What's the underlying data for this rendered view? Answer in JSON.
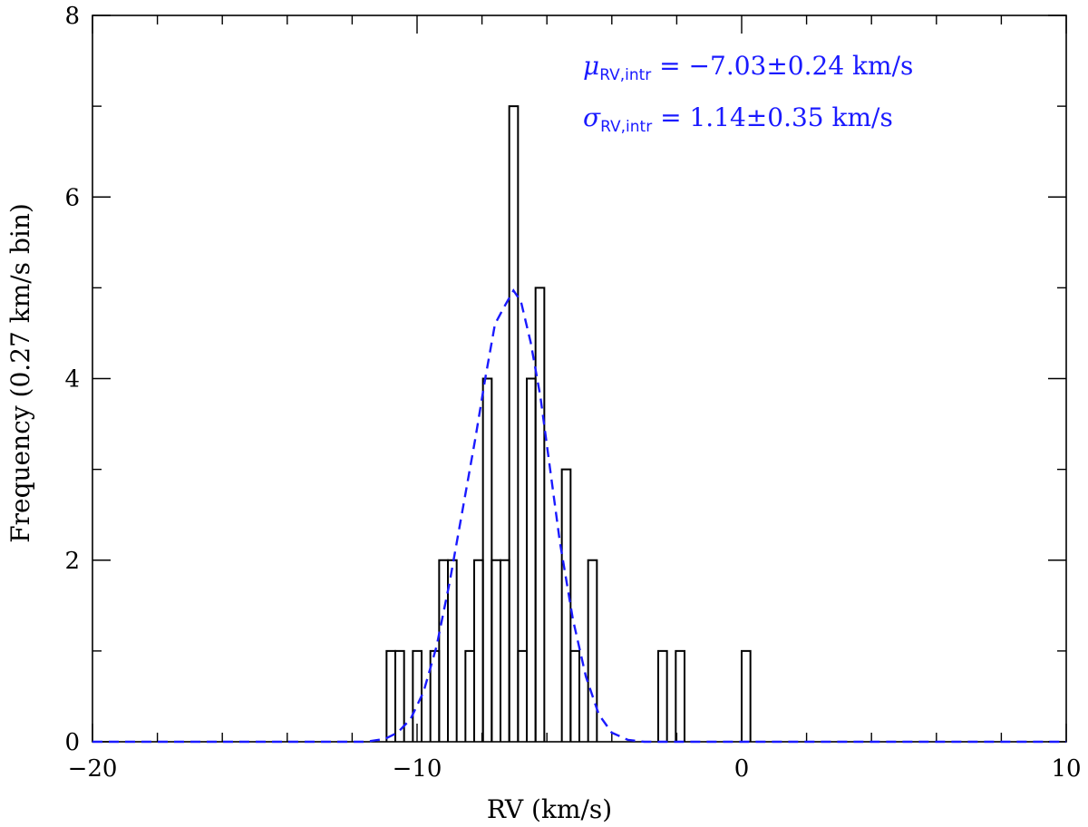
{
  "chart_data": {
    "type": "bar",
    "title": "",
    "xlabel": "RV (km/s)",
    "ylabel": "Frequency (0.27 km/s bin)",
    "xlim": [
      -20,
      10
    ],
    "ylim": [
      0,
      8
    ],
    "grid": false,
    "x_ticks_major": [
      -20,
      -10,
      0,
      10
    ],
    "x_tick_labels": [
      "−20",
      "−10",
      "0",
      "10"
    ],
    "y_ticks_major": [
      0,
      2,
      4,
      6,
      8
    ],
    "y_tick_labels": [
      "0",
      "2",
      "4",
      "6",
      "8"
    ],
    "bin_width": 0.27,
    "histogram": {
      "name": "",
      "color": "#000000",
      "bins": [
        {
          "start": -10.94,
          "count": 1
        },
        {
          "start": -10.67,
          "count": 1
        },
        {
          "start": -10.4,
          "count": 0
        },
        {
          "start": -10.13,
          "count": 1
        },
        {
          "start": -9.86,
          "count": 0
        },
        {
          "start": -9.59,
          "count": 1
        },
        {
          "start": -9.32,
          "count": 2
        },
        {
          "start": -9.05,
          "count": 2
        },
        {
          "start": -8.78,
          "count": 0
        },
        {
          "start": -8.51,
          "count": 1
        },
        {
          "start": -8.24,
          "count": 2
        },
        {
          "start": -7.97,
          "count": 4
        },
        {
          "start": -7.7,
          "count": 2
        },
        {
          "start": -7.43,
          "count": 2
        },
        {
          "start": -7.16,
          "count": 7
        },
        {
          "start": -6.89,
          "count": 1
        },
        {
          "start": -6.62,
          "count": 4
        },
        {
          "start": -6.35,
          "count": 5
        },
        {
          "start": -6.08,
          "count": 0
        },
        {
          "start": -5.81,
          "count": 0
        },
        {
          "start": -5.54,
          "count": 3
        },
        {
          "start": -5.27,
          "count": 1
        },
        {
          "start": -5.0,
          "count": 0
        },
        {
          "start": -4.73,
          "count": 2
        },
        {
          "start": -4.46,
          "count": 0
        },
        {
          "start": -2.57,
          "count": 1
        },
        {
          "start": -2.3,
          "count": 0
        },
        {
          "start": -2.03,
          "count": 1
        },
        {
          "start": 0.0,
          "count": 1
        }
      ]
    },
    "fit_curve": {
      "name": "",
      "style": "dashed",
      "color": "#1a1aff",
      "x": [
        -20,
        -11.6,
        -11.0,
        -10.6,
        -10.2,
        -9.8,
        -9.4,
        -9.0,
        -8.6,
        -8.2,
        -7.9,
        -7.6,
        -7.3,
        -7.03,
        -6.8,
        -6.5,
        -6.2,
        -5.9,
        -5.6,
        -5.2,
        -4.8,
        -4.4,
        -4.0,
        -3.5,
        -3.0,
        10
      ],
      "y": [
        0,
        0,
        0.03,
        0.1,
        0.25,
        0.55,
        1.05,
        1.75,
        2.55,
        3.35,
        4.0,
        4.6,
        4.8,
        4.97,
        4.85,
        4.4,
        3.8,
        3.0,
        2.2,
        1.35,
        0.72,
        0.3,
        0.1,
        0.02,
        0,
        0
      ]
    },
    "annotations": [
      {
        "symbol": "μ",
        "subscript": "RV,intr",
        "text": " = −7.03±0.24 km/s"
      },
      {
        "symbol": "σ",
        "subscript": "RV,intr",
        "text": " = 1.14±0.35 km/s"
      }
    ]
  }
}
